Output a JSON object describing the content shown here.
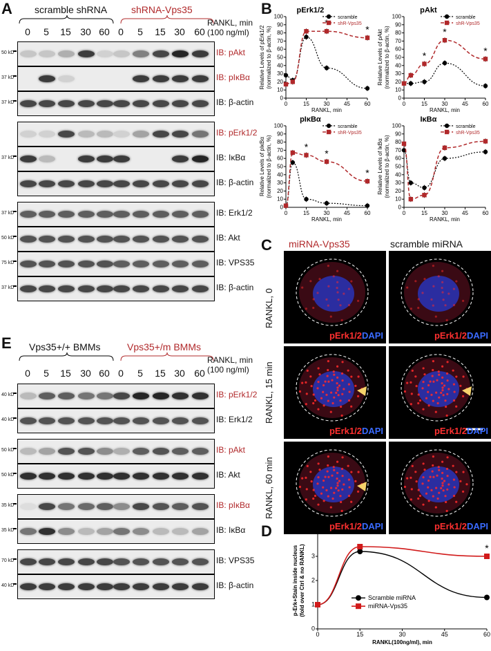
{
  "panelA": {
    "letter": "A",
    "group1": "scramble shRNA",
    "group2": "shRNA-Vps35",
    "rankl_line1": "RANKL, min",
    "rankl_line2": "(100 ng/ml)",
    "lanes": [
      "0",
      "5",
      "15",
      "30",
      "60",
      "0",
      "5",
      "15",
      "30",
      "60"
    ],
    "blots": [
      {
        "label": "IB: pAkt",
        "marker": "50 kD",
        "red": true
      },
      {
        "label": "IB: pIκBα",
        "marker": "37 kD",
        "red": true
      },
      {
        "label": "IB: β-actin",
        "marker": "37 kD",
        "red": false
      },
      {
        "label": "IB: pErk1/2",
        "marker": "",
        "red": true
      },
      {
        "label": "IB: IκBα",
        "marker": "37 kD",
        "red": false
      },
      {
        "label": "IB: β-actin",
        "marker": "",
        "red": false
      },
      {
        "label": "IB: Erk1/2",
        "marker": "37 kD",
        "red": false
      },
      {
        "label": "IB: Akt",
        "marker": "50 kD",
        "red": false
      },
      {
        "label": "IB: VPS35",
        "marker": "75 kD",
        "red": false
      },
      {
        "label": "IB: β-actin",
        "marker": "37 kD",
        "red": false
      }
    ]
  },
  "panelE": {
    "letter": "E",
    "group1": "Vps35+/+ BMMs",
    "group2": "Vps35+/m BMMs",
    "rankl_line1": "RANKL, min",
    "rankl_line2": "(100 ng/ml)",
    "lanes": [
      "0",
      "5",
      "15",
      "30",
      "60",
      "0",
      "5",
      "15",
      "30",
      "60"
    ],
    "blots": [
      {
        "label": "IB: pErk1/2",
        "marker": "40 kD",
        "red": true
      },
      {
        "label": "IB: Erk1/2",
        "marker": "40 kD",
        "red": false
      },
      {
        "label": "IB: pAkt",
        "marker": "50 kD",
        "red": true
      },
      {
        "label": "IB: Akt",
        "marker": "50 kD",
        "red": false
      },
      {
        "label": "IB: pIκBα",
        "marker": "35 kD",
        "red": true
      },
      {
        "label": "IB: IκBα",
        "marker": "35 kD",
        "red": false
      },
      {
        "label": "IB: VPS35",
        "marker": "70 kD",
        "red": false
      },
      {
        "label": "IB: β-actin",
        "marker": "40 kD",
        "red": false
      }
    ]
  },
  "panelB": {
    "letter": "B",
    "chart_data": [
      {
        "type": "line",
        "title": "pErk1/2",
        "xlabel": "RANKL, min",
        "ylabel": "Relative Levels of pErk1/2 (normalized to β-actin, %)",
        "x": [
          0,
          5,
          15,
          30,
          60
        ],
        "xticks": [
          0,
          15,
          30,
          45,
          60
        ],
        "ylim": [
          0,
          100
        ],
        "yticks": [
          0,
          10,
          20,
          30,
          40,
          50,
          60,
          70,
          80,
          90,
          100
        ],
        "legend": [
          "scramble",
          "shR-Vps35"
        ],
        "series": [
          {
            "name": "scramble",
            "values": [
              28,
              22,
              75,
              37,
              12
            ]
          },
          {
            "name": "shR-Vps35",
            "values": [
              17,
              20,
              82,
              82,
              74
            ]
          }
        ],
        "significant_x": [
          30,
          60
        ]
      },
      {
        "type": "line",
        "title": "pAkt",
        "xlabel": "RANKL, min",
        "ylabel": "Relative Levels of pAkt (normalized to β-actin, %)",
        "x": [
          0,
          5,
          15,
          30,
          60
        ],
        "xticks": [
          0,
          15,
          30,
          45,
          60
        ],
        "ylim": [
          0,
          100
        ],
        "yticks": [
          0,
          10,
          20,
          30,
          40,
          50,
          60,
          70,
          80,
          90,
          100
        ],
        "legend": [
          "scramble",
          "shR-Vps35"
        ],
        "series": [
          {
            "name": "scramble",
            "values": [
              18,
              18,
              20,
              43,
              15
            ]
          },
          {
            "name": "shR-Vps35",
            "values": [
              18,
              28,
              42,
              71,
              48
            ]
          }
        ],
        "significant_x": [
          15,
          30,
          60
        ]
      },
      {
        "type": "line",
        "title": "pIκBα",
        "xlabel": "RANKL, min",
        "ylabel": "Relative Levels of pIκBα (normalized to β-actin, %)",
        "x": [
          0,
          5,
          15,
          30,
          60
        ],
        "xticks": [
          0,
          15,
          30,
          45,
          60
        ],
        "ylim": [
          0,
          100
        ],
        "yticks": [
          0,
          10,
          20,
          30,
          40,
          50,
          60,
          70,
          80,
          90,
          100
        ],
        "legend": [
          "scramble",
          "shR-Vps35"
        ],
        "series": [
          {
            "name": "scramble",
            "values": [
              2,
              55,
              10,
              5,
              2
            ]
          },
          {
            "name": "shR-Vps35",
            "values": [
              2,
              67,
              64,
              56,
              32
            ]
          }
        ],
        "significant_x": [
          15,
          30,
          60
        ]
      },
      {
        "type": "line",
        "title": "IκBα",
        "xlabel": "RANKL, min",
        "ylabel": "Relative Levels of IκBα (normalized to β-actin, %)",
        "x": [
          0,
          5,
          15,
          30,
          60
        ],
        "xticks": [
          0,
          15,
          30,
          45,
          60
        ],
        "ylim": [
          0,
          100
        ],
        "yticks": [
          0,
          10,
          20,
          30,
          40,
          50,
          60,
          70,
          80,
          90,
          100
        ],
        "legend": [
          "scramble",
          "shR-Vps35"
        ],
        "series": [
          {
            "name": "scramble",
            "values": [
              70,
              30,
              24,
              60,
              68
            ]
          },
          {
            "name": "shR-Vps35",
            "values": [
              78,
              10,
              15,
              73,
              81
            ]
          }
        ],
        "significant_x": []
      }
    ]
  },
  "panelC": {
    "letter": "C",
    "col1": "miRNA-Vps35",
    "col2": "scramble miRNA",
    "rows": [
      "RANKL, 0",
      "RANKL, 15 min",
      "RANKL, 60 min"
    ],
    "stain_red": "pErk1/2",
    "stain_blue": "DAPI"
  },
  "panelD": {
    "letter": "D",
    "chart_data": {
      "type": "line",
      "xlabel": "RANKL(100ng/ml), min",
      "ylabel": "p-Erk+Stain inside nucleus (fold over Ctrl & no RANKL)",
      "x": [
        0,
        15,
        60
      ],
      "xticks": [
        0,
        15,
        30,
        45,
        60
      ],
      "ylim": [
        0,
        4
      ],
      "yticks": [
        0,
        1,
        2,
        3,
        4
      ],
      "series": [
        {
          "name": "Scramble miRNA",
          "values": [
            1,
            3.2,
            1.3
          ]
        },
        {
          "name": "miRNA-Vps35",
          "values": [
            1,
            3.4,
            3.0
          ]
        }
      ],
      "significant_x": [
        60
      ]
    }
  }
}
